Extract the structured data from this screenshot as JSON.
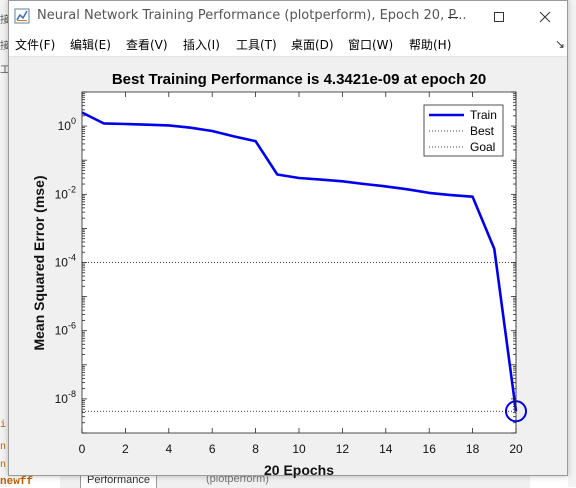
{
  "window": {
    "title": "Neural Network Training Performance (plotperform), Epoch 20, P...",
    "minimize_icon": "minimize-icon",
    "maximize_icon": "maximize-icon",
    "close_icon": "close-icon"
  },
  "menubar": {
    "items": [
      {
        "label": "文件(F)"
      },
      {
        "label": "编辑(E)"
      },
      {
        "label": "查看(V)"
      },
      {
        "label": "插入(I)"
      },
      {
        "label": "工具(T)"
      },
      {
        "label": "桌面(D)"
      },
      {
        "label": "窗口(W)"
      },
      {
        "label": "帮助(H)"
      }
    ],
    "overflow_arrow": "↘"
  },
  "background": {
    "code_fragment": "newff",
    "tab_labels": [
      "Performance",
      "(plotperform)"
    ]
  },
  "colors": {
    "train": "#0000ee",
    "best_goal": "#000000",
    "plot_bg": "#ffffff",
    "figure_bg": "#f0f0f0"
  },
  "chart_data": {
    "type": "line",
    "title": "Best Training Performance is 4.3421e-09 at epoch 20",
    "xlabel": "20 Epochs",
    "ylabel": "Mean Squared Error  (mse)",
    "y_scale": "log",
    "xlim": [
      0,
      20
    ],
    "ylim": [
      1e-09,
      10
    ],
    "x_ticks": [
      0,
      2,
      4,
      6,
      8,
      10,
      12,
      14,
      16,
      18,
      20
    ],
    "y_ticks": [
      {
        "value": 1,
        "base": "10",
        "exp": "0"
      },
      {
        "value": 0.01,
        "base": "10",
        "exp": "-2"
      },
      {
        "value": 0.0001,
        "base": "10",
        "exp": "-4"
      },
      {
        "value": 1e-06,
        "base": "10",
        "exp": "-6"
      },
      {
        "value": 1e-08,
        "base": "10",
        "exp": "-8"
      }
    ],
    "series": [
      {
        "name": "Train",
        "style": "solid",
        "x": [
          0,
          1,
          2,
          3,
          4,
          5,
          6,
          7,
          8,
          9,
          10,
          11,
          12,
          13,
          14,
          15,
          16,
          17,
          18,
          19,
          20
        ],
        "y": [
          2.5,
          1.2,
          1.15,
          1.1,
          1.05,
          0.9,
          0.72,
          0.5,
          0.36,
          0.038,
          0.03,
          0.027,
          0.024,
          0.02,
          0.017,
          0.014,
          0.011,
          0.0095,
          0.0085,
          0.00025,
          4.3421e-09
        ]
      },
      {
        "name": "Best",
        "style": "dotted",
        "hline": 4.3421e-09,
        "vline": 20,
        "marker": {
          "x": 20,
          "y": 4.3421e-09,
          "shape": "circle"
        }
      },
      {
        "name": "Goal",
        "style": "dotted",
        "hline": 0.0001
      }
    ],
    "legend_placement": "top-right",
    "grid": false
  }
}
